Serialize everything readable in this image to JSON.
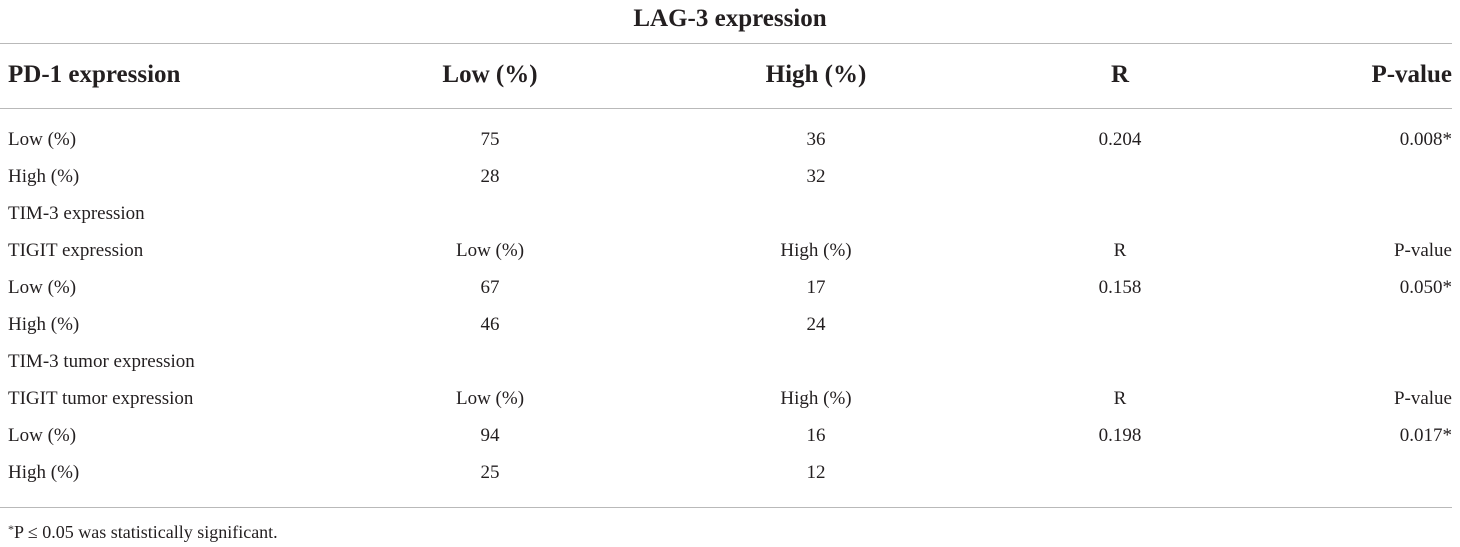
{
  "table": {
    "spanner_title": "LAG-3 expression",
    "header": [
      "PD-1 expression",
      "Low (%)",
      "High (%)",
      "R",
      "P-value"
    ],
    "rows": [
      [
        "Low (%)",
        "75",
        "36",
        "0.204",
        "0.008*"
      ],
      [
        "High (%)",
        "28",
        "32",
        "",
        ""
      ],
      [
        "TIM-3 expression",
        "",
        "",
        "",
        ""
      ],
      [
        "TIGIT expression",
        "Low (%)",
        "High (%)",
        "R",
        "P-value"
      ],
      [
        "Low (%)",
        "67",
        "17",
        "0.158",
        "0.050*"
      ],
      [
        "High (%)",
        "46",
        "24",
        "",
        ""
      ],
      [
        "TIM-3 tumor expression",
        "",
        "",
        "",
        ""
      ],
      [
        "TIGIT tumor expression",
        "Low (%)",
        "High (%)",
        "R",
        "P-value"
      ],
      [
        "Low (%)",
        "94",
        "16",
        "0.198",
        "0.017*"
      ],
      [
        "High (%)",
        "25",
        "12",
        "",
        ""
      ]
    ],
    "footnote": {
      "marker": "*",
      "text": "P ≤ 0.05 was statistically significant."
    }
  }
}
